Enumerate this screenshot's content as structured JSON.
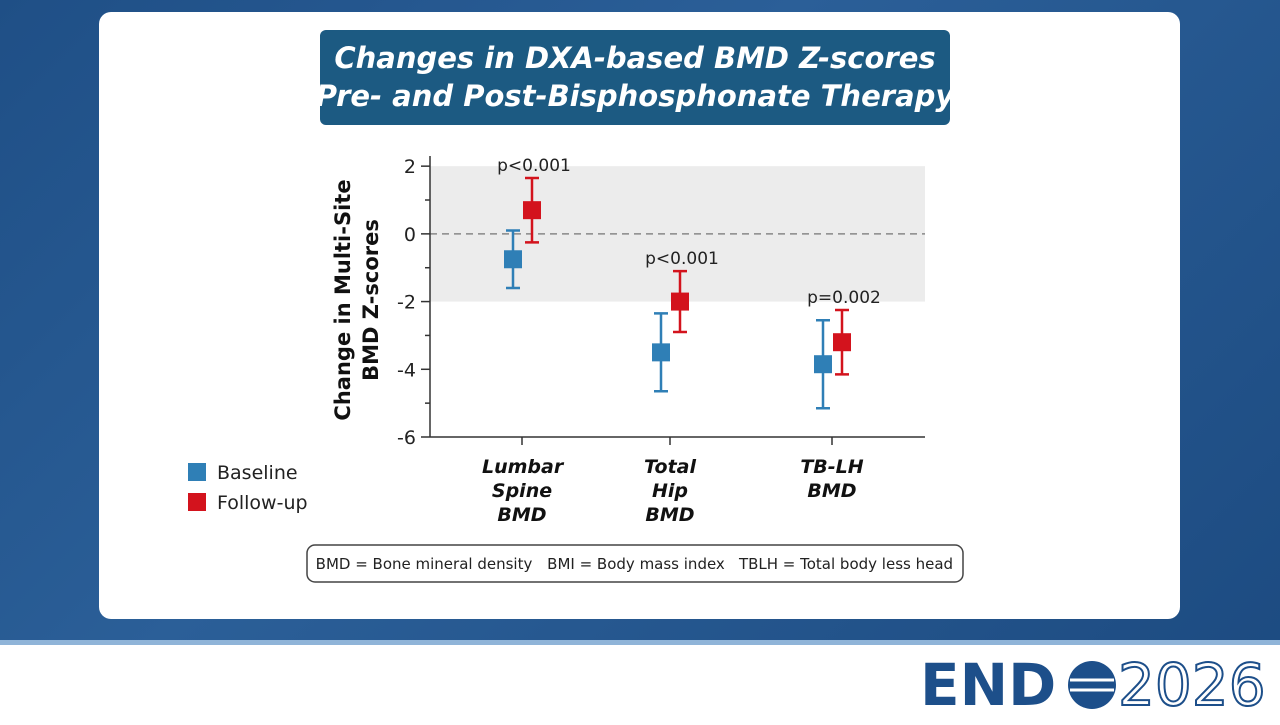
{
  "chart_data": {
    "type": "errorbar",
    "title": [
      "Changes in DXA-based BMD Z-scores",
      "Pre- and Post-Bisphosphonate Therapy"
    ],
    "y_label": [
      "Change in Multi-Site",
      "BMD Z-scores"
    ],
    "categories": [
      "Lumbar Spine BMD",
      "Total Hip BMD",
      "TB-LH BMD"
    ],
    "series": [
      {
        "name": "Baseline",
        "color": "#2f7fb6",
        "values": [
          -0.75,
          -3.5,
          -3.85
        ],
        "errors": [
          0.85,
          1.15,
          1.3
        ]
      },
      {
        "name": "Follow-up",
        "color": "#d3131d",
        "values": [
          0.7,
          -2.0,
          -3.2
        ],
        "errors": [
          0.95,
          0.9,
          0.95
        ]
      }
    ],
    "annotations": [
      "p<0.001",
      "p<0.001",
      "p=0.002"
    ],
    "ylim": [
      -6,
      2.3
    ],
    "yticks": [
      -6,
      -4,
      -2,
      0,
      2
    ],
    "minor_yticks": [
      -5,
      -3,
      -1,
      1
    ],
    "reference_band": [
      -2,
      2
    ],
    "reference_line": 0,
    "legend": "bottom-left",
    "footnotes": [
      "BMD = Bone mineral density",
      "BMI = Body mass index",
      "TBLH = Total body less head"
    ]
  },
  "logo": {
    "left": "END",
    "right": "2026"
  }
}
